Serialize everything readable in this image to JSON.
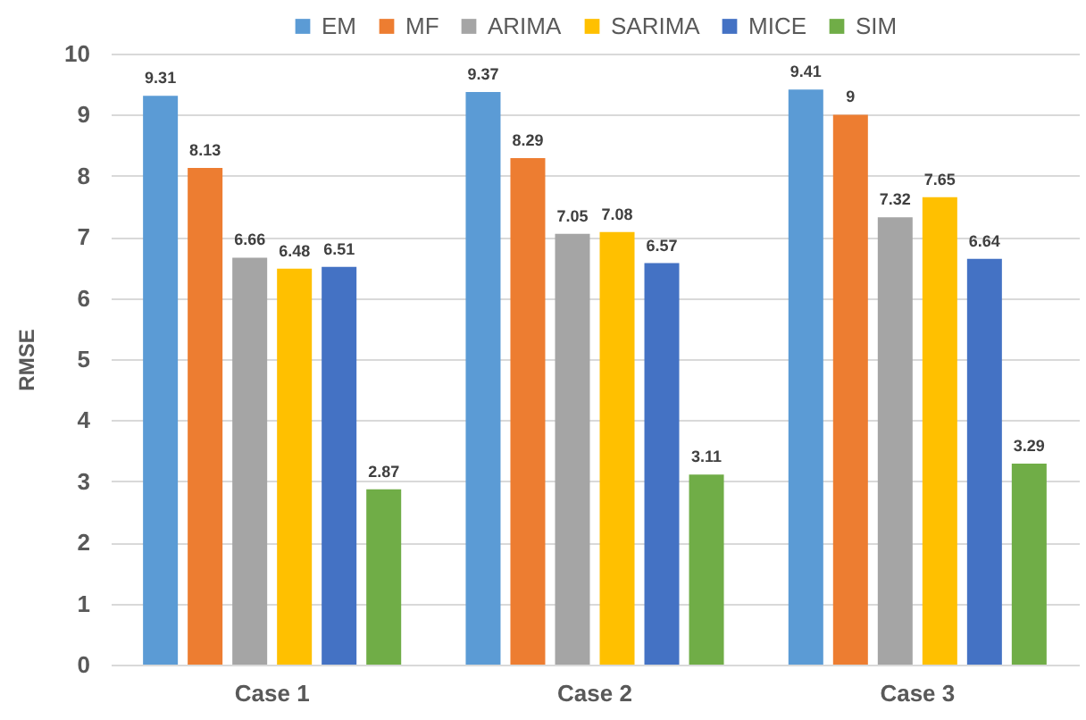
{
  "chart_data": {
    "type": "bar",
    "ylabel": "RMSE",
    "categories": [
      "Case 1",
      "Case 2",
      "Case 3"
    ],
    "series": [
      {
        "name": "EM",
        "color": "#5b9bd5",
        "values": [
          9.31,
          9.37,
          9.41
        ]
      },
      {
        "name": "MF",
        "color": "#ed7d31",
        "values": [
          8.13,
          8.29,
          9
        ]
      },
      {
        "name": "ARIMA",
        "color": "#a5a5a5",
        "values": [
          6.66,
          7.05,
          7.32
        ]
      },
      {
        "name": "SARIMA",
        "color": "#ffc000",
        "values": [
          6.48,
          7.08,
          7.65
        ]
      },
      {
        "name": "MICE",
        "color": "#4472c4",
        "values": [
          6.51,
          6.57,
          6.64
        ]
      },
      {
        "name": "SIM",
        "color": "#70ad47",
        "values": [
          2.87,
          3.11,
          3.29
        ]
      }
    ],
    "ylim": [
      0,
      10
    ],
    "yticks": [
      0,
      1,
      2,
      3,
      4,
      5,
      6,
      7,
      8,
      9,
      10
    ],
    "grid": "y",
    "legend": "top",
    "data_labels": true
  }
}
